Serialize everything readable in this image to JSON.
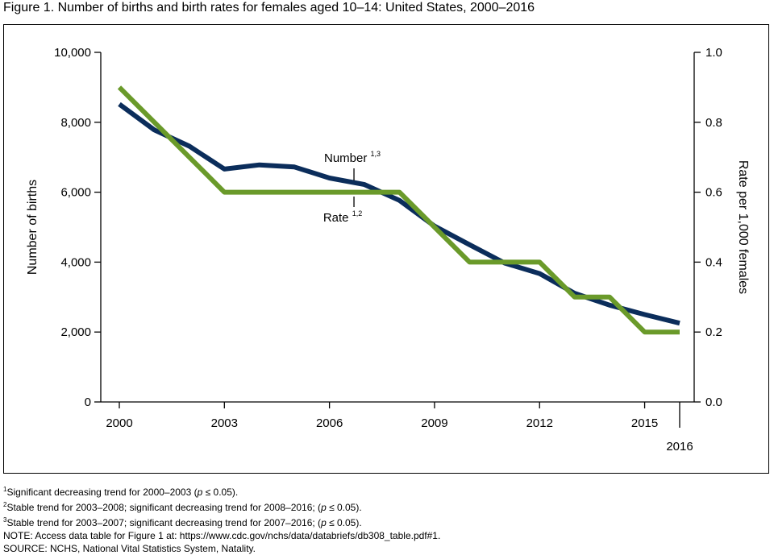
{
  "figure_title": "Figure 1. Number of births and birth rates for females aged 10–14: United States, 2000–2016",
  "chart_data": {
    "type": "line",
    "xlabel": "",
    "x": [
      2000,
      2001,
      2002,
      2003,
      2004,
      2005,
      2006,
      2007,
      2008,
      2009,
      2010,
      2011,
      2012,
      2013,
      2014,
      2015,
      2016
    ],
    "x_ticks": [
      "2000",
      "2003",
      "2006",
      "2009",
      "2012",
      "2015",
      "2016"
    ],
    "y_left": {
      "label": "Number of births",
      "ylim": [
        0,
        10000
      ],
      "ticks": [
        "0",
        "2,000",
        "4,000",
        "6,000",
        "8,000",
        "10,000"
      ]
    },
    "y_right": {
      "label": "Rate per 1,000 females",
      "ylim": [
        0,
        1.0
      ],
      "ticks": [
        "0.0",
        "0.2",
        "0.4",
        "0.6",
        "0.8",
        "1.0"
      ]
    },
    "series": [
      {
        "name": "Number",
        "superscript": "1,3",
        "axis": "left",
        "color": "#0b2d5b",
        "values": [
          8519,
          7781,
          7315,
          6661,
          6781,
          6722,
          6405,
          6218,
          5764,
          5030,
          4497,
          3974,
          3673,
          3108,
          2769,
          2500,
          2253
        ]
      },
      {
        "name": "Rate",
        "superscript": "1,2",
        "axis": "right",
        "color": "#6a9a2a",
        "values": [
          0.9,
          0.8,
          0.7,
          0.6,
          0.6,
          0.6,
          0.6,
          0.6,
          0.6,
          0.5,
          0.4,
          0.4,
          0.4,
          0.3,
          0.3,
          0.2,
          0.2
        ]
      }
    ],
    "grid": false,
    "legend": "inline labels"
  },
  "footnotes": {
    "fn1": {
      "sup": "1",
      "text": "Significant decreasing trend for 2000–2003 (p ≤ 0.05)."
    },
    "fn2": {
      "sup": "2",
      "text": "Stable trend for 2003–2008; significant decreasing trend for 2008–2016; (p ≤ 0.05)."
    },
    "fn3": {
      "sup": "3",
      "text": "Stable trend for 2003–2007; significant decreasing trend for 2007–2016; (p ≤ 0.05)."
    },
    "note": "NOTE: Access data table for Figure 1 at: https://www.cdc.gov/nchs/data/databriefs/db308_table.pdf#1.",
    "source": "SOURCE: NCHS, National Vital Statistics System, Natality."
  }
}
